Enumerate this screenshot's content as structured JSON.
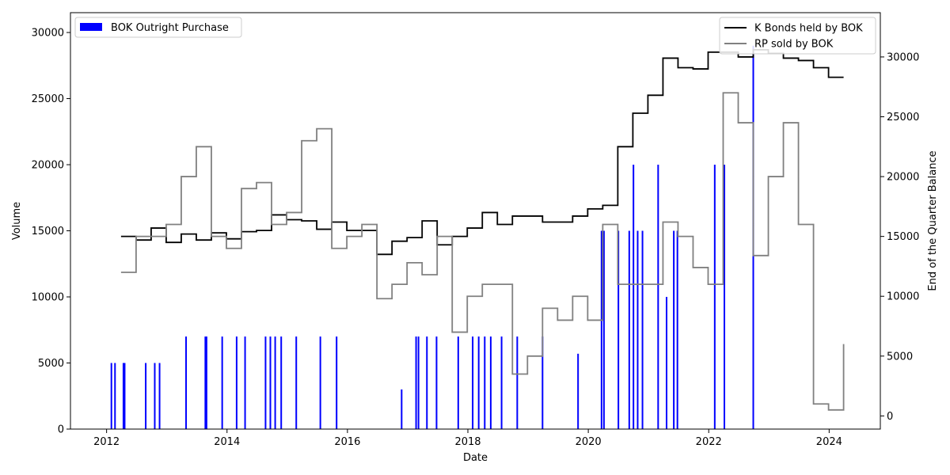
{
  "chart_data": {
    "type": "bar+step",
    "title": "",
    "xlabel": "Date",
    "ylabel_left": "Volume",
    "ylabel_right": "End of the Quarter Balance",
    "x_range": [
      2011.4,
      2024.85
    ],
    "ylim_left": [
      0,
      31500
    ],
    "ylim_right": [
      -1100,
      33700
    ],
    "x_ticks": [
      2012,
      2014,
      2016,
      2018,
      2020,
      2022,
      2024
    ],
    "y_ticks_left": [
      0,
      5000,
      10000,
      15000,
      20000,
      25000,
      30000
    ],
    "y_ticks_right": [
      0,
      5000,
      10000,
      15000,
      20000,
      25000,
      30000
    ],
    "grid": false,
    "legends": [
      {
        "position": "top-left",
        "entries": [
          "BOK Outright Purchase"
        ]
      },
      {
        "position": "top-right",
        "entries": [
          "K Bonds held by BOK",
          "RP sold by BOK"
        ]
      }
    ],
    "series": [
      {
        "name": "BOK Outright Purchase",
        "kind": "bar",
        "axis": "left",
        "color": "#0000ff",
        "x": [
          2012.08,
          2012.14,
          2012.28,
          2012.3,
          2012.65,
          2012.8,
          2012.88,
          2013.32,
          2013.64,
          2013.66,
          2013.92,
          2014.16,
          2014.3,
          2014.64,
          2014.72,
          2014.8,
          2014.9,
          2015.15,
          2015.55,
          2015.82,
          2016.9,
          2017.14,
          2017.18,
          2017.32,
          2017.48,
          2017.84,
          2018.08,
          2018.18,
          2018.28,
          2018.38,
          2018.56,
          2018.82,
          2019.24,
          2019.83,
          2020.22,
          2020.26,
          2020.5,
          2020.68,
          2020.75,
          2020.82,
          2020.9,
          2021.16,
          2021.3,
          2021.42,
          2021.48,
          2022.1,
          2022.26,
          2022.74
        ],
        "values": [
          5000,
          5000,
          5000,
          5000,
          5000,
          5000,
          5000,
          7000,
          7000,
          7000,
          7000,
          7000,
          7000,
          7000,
          7000,
          7000,
          7000,
          7000,
          7000,
          7000,
          3000,
          7000,
          7000,
          7000,
          7000,
          7000,
          7000,
          7000,
          7000,
          7000,
          7000,
          7000,
          7000,
          5700,
          15000,
          15000,
          15000,
          15000,
          20000,
          15000,
          15000,
          20000,
          10000,
          15000,
          15000,
          20000,
          20000,
          29000
        ]
      },
      {
        "name": "K Bonds held by BOK",
        "kind": "step",
        "axis": "right",
        "color": "#000000",
        "x": [
          2012.24,
          2012.49,
          2012.74,
          2012.99,
          2013.24,
          2013.49,
          2013.74,
          2013.99,
          2014.24,
          2014.49,
          2014.74,
          2014.99,
          2015.24,
          2015.49,
          2015.74,
          2015.99,
          2016.24,
          2016.49,
          2016.74,
          2016.99,
          2017.24,
          2017.49,
          2017.74,
          2017.99,
          2018.24,
          2018.49,
          2018.74,
          2018.99,
          2019.24,
          2019.49,
          2019.74,
          2019.99,
          2020.24,
          2020.49,
          2020.74,
          2020.99,
          2021.24,
          2021.49,
          2021.74,
          2021.99,
          2022.24,
          2022.49,
          2022.74,
          2022.99,
          2023.24,
          2023.49,
          2023.74,
          2023.99,
          2024.24
        ],
        "values": [
          15000,
          14700,
          15700,
          14500,
          15200,
          14700,
          15300,
          14800,
          15400,
          15500,
          16800,
          16400,
          16300,
          15600,
          16200,
          15500,
          15500,
          13500,
          14600,
          14900,
          16300,
          14300,
          15000,
          15700,
          17000,
          16000,
          16700,
          16700,
          16200,
          16200,
          16700,
          17300,
          17600,
          22500,
          25300,
          26800,
          29900,
          29100,
          29000,
          30400,
          30400,
          30000,
          30600,
          30300,
          29900,
          29700,
          29100,
          28300,
          28300
        ]
      },
      {
        "name": "RP sold by BOK",
        "kind": "step",
        "axis": "right",
        "color": "#808080",
        "x": [
          2012.24,
          2012.49,
          2012.74,
          2012.99,
          2013.24,
          2013.49,
          2013.74,
          2013.99,
          2014.24,
          2014.49,
          2014.74,
          2014.99,
          2015.24,
          2015.49,
          2015.74,
          2015.99,
          2016.24,
          2016.49,
          2016.74,
          2016.99,
          2017.24,
          2017.49,
          2017.74,
          2017.99,
          2018.24,
          2018.49,
          2018.74,
          2018.99,
          2019.24,
          2019.49,
          2019.74,
          2019.99,
          2020.24,
          2020.49,
          2020.74,
          2020.99,
          2021.24,
          2021.49,
          2021.74,
          2021.99,
          2022.24,
          2022.49,
          2022.74,
          2022.99,
          2023.24,
          2023.49,
          2023.74,
          2023.99,
          2024.24
        ],
        "values": [
          12000,
          15000,
          15000,
          16000,
          20000,
          22500,
          15000,
          14000,
          19000,
          19500,
          16000,
          17000,
          23000,
          24000,
          14000,
          15000,
          16000,
          9800,
          11000,
          12800,
          11800,
          15000,
          7000,
          10000,
          11000,
          11000,
          3500,
          5000,
          9000,
          8000,
          10000,
          8000,
          16000,
          11000,
          11000,
          11000,
          16200,
          15000,
          12400,
          11000,
          27000,
          24500,
          13400,
          20000,
          24500,
          16000,
          1000,
          500,
          6000
        ]
      }
    ]
  }
}
